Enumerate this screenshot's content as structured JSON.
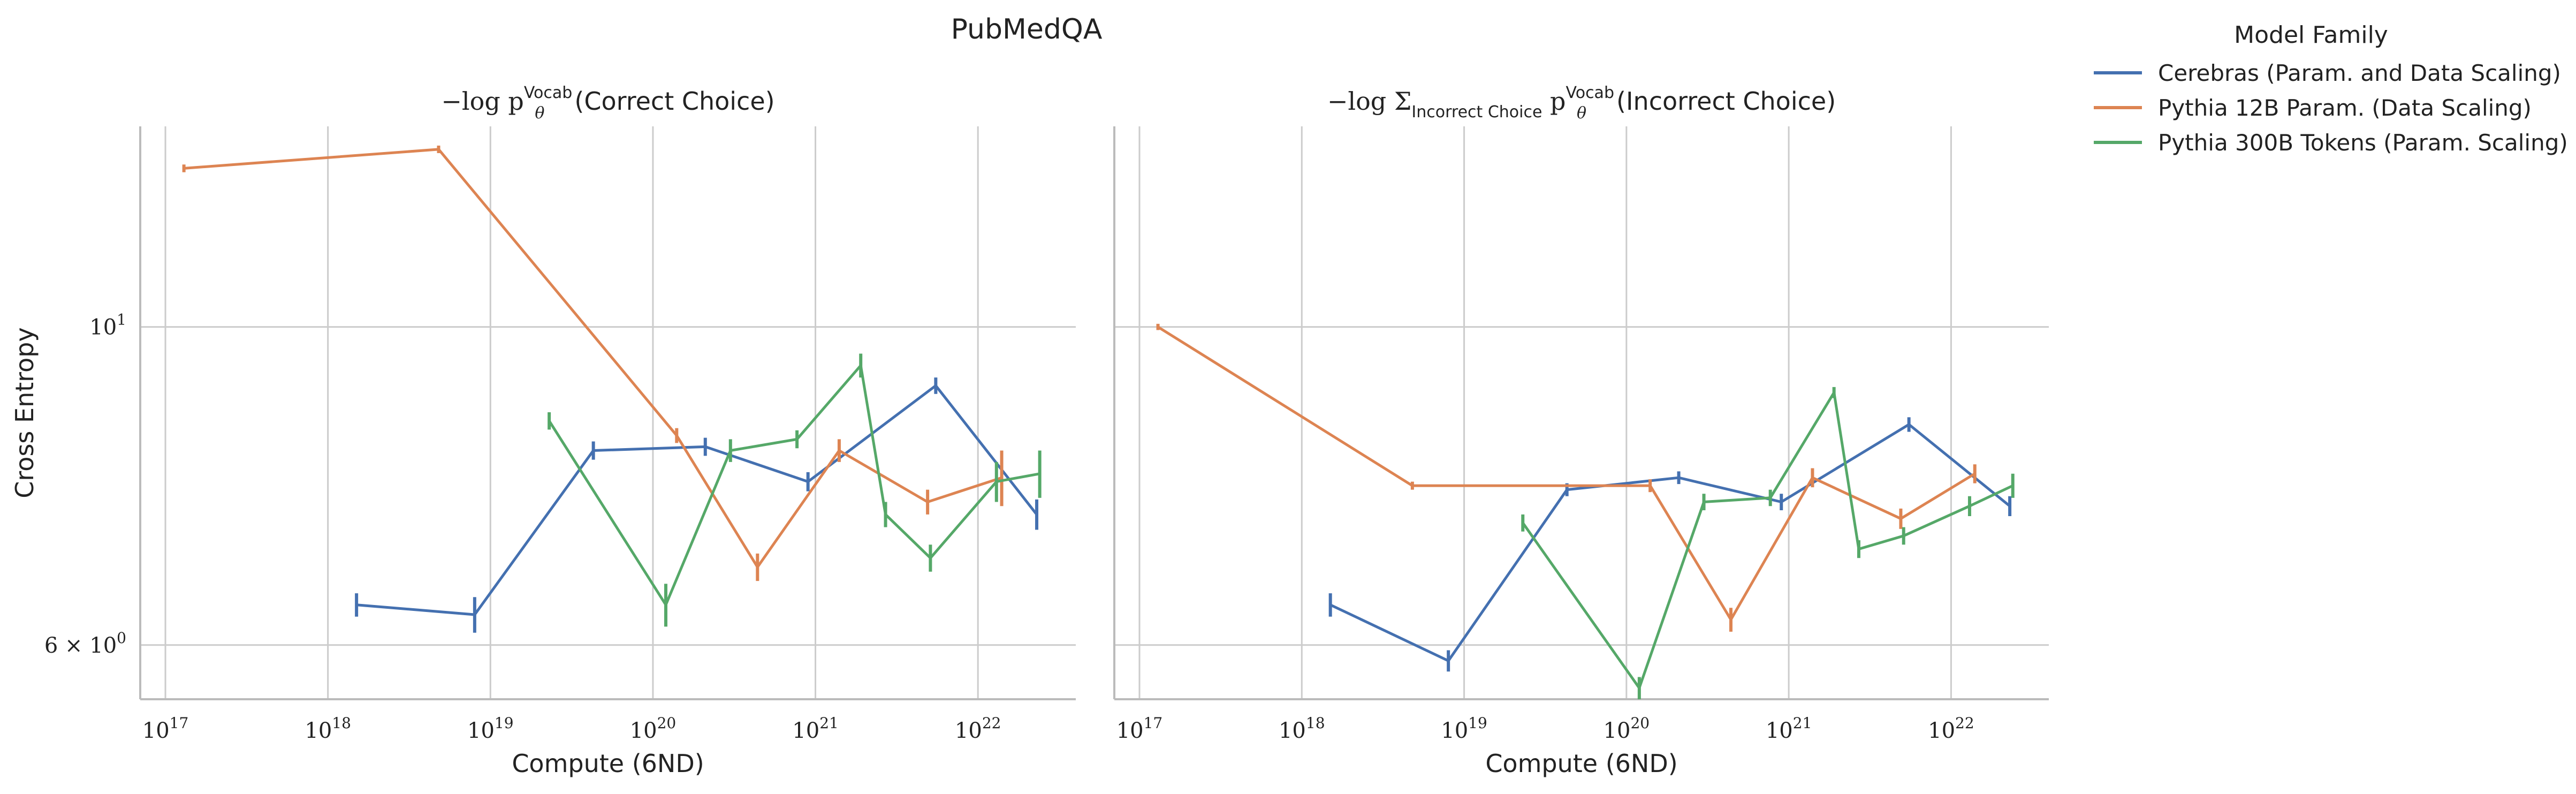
{
  "figure": {
    "suptitle": "PubMedQA",
    "legend_title": "Model Family",
    "legend_placement": "right, outside"
  },
  "chart_data": [
    {
      "type": "line",
      "title": "−log p_θ^Vocab(Correct Choice)",
      "title_parts": {
        "prefix": "−log p",
        "sub": "θ",
        "sup": "Vocab",
        "suffix": "(Correct Choice)"
      },
      "xlabel": "Compute (6ND)",
      "ylabel": "Cross Entropy",
      "xscale": "log",
      "yscale": "log",
      "xlim": [
        7e+16,
        4e+22
      ],
      "ylim": [
        5.5,
        13.8
      ],
      "xticks": [
        1e+17,
        1e+18,
        1e+19,
        1e+20,
        1e+21,
        1e+22
      ],
      "xtick_labels": [
        {
          "base": "10",
          "exp": "17"
        },
        {
          "base": "10",
          "exp": "18"
        },
        {
          "base": "10",
          "exp": "19"
        },
        {
          "base": "10",
          "exp": "20"
        },
        {
          "base": "10",
          "exp": "21"
        },
        {
          "base": "10",
          "exp": "22"
        }
      ],
      "yticks": [
        10,
        6
      ],
      "ytick_labels": [
        {
          "text": "10",
          "exp": "1"
        },
        {
          "text": "6 × 10",
          "exp": "0"
        }
      ],
      "grid": true,
      "series": [
        {
          "name": "Cerebras (Param. and Data Scaling)",
          "color": "#4470b0",
          "x": [
            1.5e+18,
            8e+18,
            4.3e+19,
            2.1e+20,
            9e+20,
            5.5e+21,
            2.3e+22
          ],
          "y": [
            6.4,
            6.3,
            8.2,
            8.25,
            7.8,
            9.1,
            7.4
          ],
          "err": [
            0.12,
            0.18,
            0.12,
            0.12,
            0.12,
            0.12,
            0.18
          ]
        },
        {
          "name": "Pythia 12B Param. (Data Scaling)",
          "color": "#dd8452",
          "x": [
            1.3e+17,
            4.8e+18,
            1.4e+20,
            4.4e+20,
            1.4e+21,
            4.9e+21,
            1.4e+22
          ],
          "y": [
            12.9,
            13.3,
            8.4,
            6.8,
            8.2,
            7.55,
            7.85
          ],
          "err": [
            0.08,
            0.08,
            0.1,
            0.15,
            0.15,
            0.15,
            0.35
          ]
        },
        {
          "name": "Pythia 300B Tokens (Param. Scaling)",
          "color": "#55a868",
          "x": [
            2.3e+19,
            1.2e+20,
            3e+20,
            7.7e+20,
            1.9e+21,
            2.7e+21,
            5.1e+21,
            1.3e+22,
            2.4e+22
          ],
          "y": [
            8.6,
            6.4,
            8.2,
            8.35,
            9.4,
            7.4,
            6.9,
            7.8,
            7.9
          ],
          "err": [
            0.12,
            0.22,
            0.15,
            0.12,
            0.18,
            0.15,
            0.15,
            0.25,
            0.3
          ]
        }
      ]
    },
    {
      "type": "line",
      "title": "−log Σ_Incorrect Choice p_θ^Vocab(Incorrect Choice)",
      "title_parts": {
        "prefix": "−log Σ",
        "sum_sub": "Incorrect Choice",
        "mid": " p",
        "sub": "θ",
        "sup": "Vocab",
        "suffix": "(Incorrect Choice)"
      },
      "xlabel": "Compute (6ND)",
      "ylabel": "",
      "xscale": "log",
      "yscale": "log",
      "xlim": [
        7e+16,
        4e+22
      ],
      "ylim": [
        5.5,
        13.8
      ],
      "xticks": [
        1e+17,
        1e+18,
        1e+19,
        1e+20,
        1e+21,
        1e+22
      ],
      "xtick_labels": [
        {
          "base": "10",
          "exp": "17"
        },
        {
          "base": "10",
          "exp": "18"
        },
        {
          "base": "10",
          "exp": "19"
        },
        {
          "base": "10",
          "exp": "20"
        },
        {
          "base": "10",
          "exp": "21"
        },
        {
          "base": "10",
          "exp": "22"
        }
      ],
      "yticks": [
        10,
        6
      ],
      "grid": true,
      "series": [
        {
          "name": "Cerebras (Param. and Data Scaling)",
          "color": "#4470b0",
          "x": [
            1.5e+18,
            8e+18,
            4.3e+19,
            2.1e+20,
            9e+20,
            5.5e+21,
            2.3e+22
          ],
          "y": [
            6.4,
            5.85,
            7.7,
            7.85,
            7.55,
            8.55,
            7.5
          ],
          "err": [
            0.12,
            0.1,
            0.08,
            0.08,
            0.1,
            0.1,
            0.12
          ]
        },
        {
          "name": "Pythia 12B Param. (Data Scaling)",
          "color": "#dd8452",
          "x": [
            1.3e+17,
            4.8e+18,
            1.4e+20,
            4.4e+20,
            1.4e+21,
            4.9e+21,
            1.4e+22
          ],
          "y": [
            10.0,
            7.75,
            7.75,
            6.25,
            7.85,
            7.35,
            7.9
          ],
          "err": [
            0.05,
            0.05,
            0.08,
            0.12,
            0.12,
            0.12,
            0.12
          ]
        },
        {
          "name": "Pythia 300B Tokens (Param. Scaling)",
          "color": "#55a868",
          "x": [
            2.3e+19,
            1.2e+20,
            3e+20,
            7.7e+20,
            1.9e+21,
            2.7e+21,
            5.1e+21,
            1.3e+22,
            2.4e+22
          ],
          "y": [
            7.3,
            5.6,
            7.55,
            7.6,
            9.0,
            7.0,
            7.15,
            7.5,
            7.75
          ],
          "err": [
            0.1,
            0.1,
            0.1,
            0.1,
            0.08,
            0.1,
            0.1,
            0.12,
            0.15
          ]
        }
      ]
    }
  ]
}
